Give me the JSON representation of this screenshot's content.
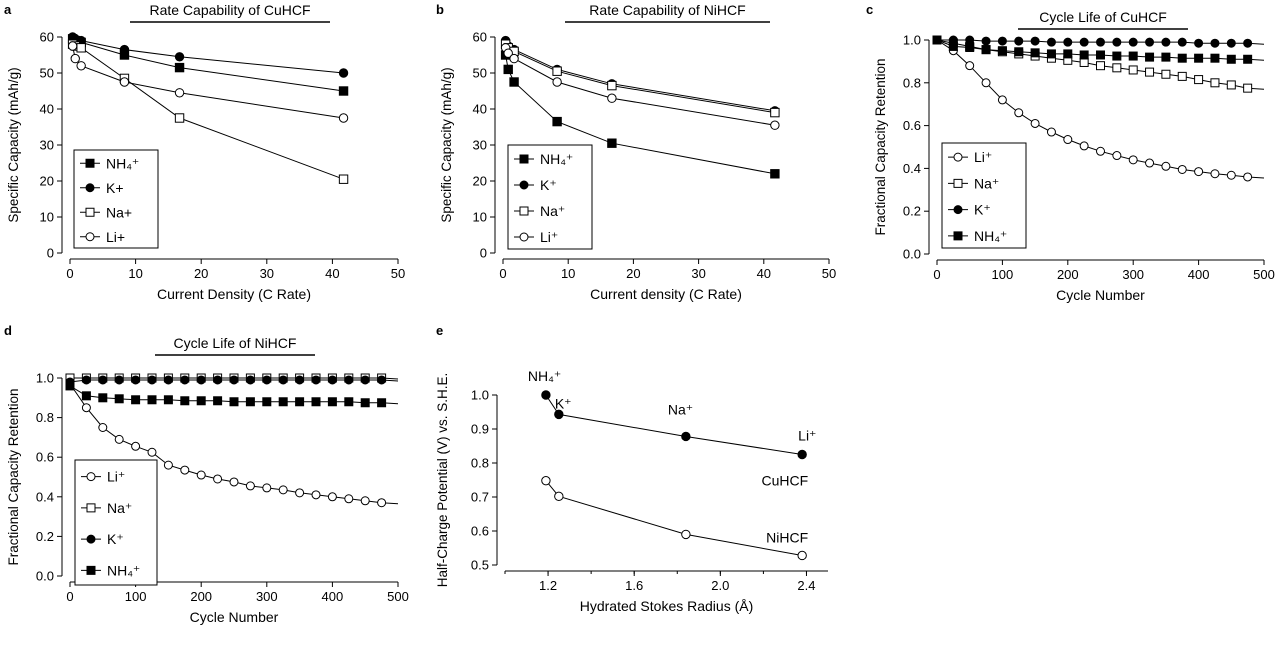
{
  "figure_title": "",
  "chart_data": [
    {
      "panel": "a",
      "type": "line",
      "title": "Rate Capability of CuHCF",
      "xlabel": "Current Density (C Rate)",
      "ylabel": "Specific Capacity (mAh/g)",
      "xlim": [
        0,
        50
      ],
      "ylim": [
        0,
        60
      ],
      "xticks": [
        "0",
        "10",
        "20",
        "30",
        "40",
        "50"
      ],
      "yticks": [
        "0",
        "10",
        "20",
        "30",
        "40",
        "50",
        "60"
      ],
      "legend": "bottom-left",
      "series": [
        {
          "name": "NH4+",
          "label": "NH₄⁺",
          "marker": "square",
          "filled": true,
          "x": [
            0.4,
            0.8,
            1.7,
            8.3,
            16.7,
            41.7
          ],
          "y": [
            59.5,
            59,
            58.5,
            55,
            51.5,
            45
          ]
        },
        {
          "name": "K+",
          "label": "K+",
          "marker": "circle",
          "filled": true,
          "x": [
            0.4,
            0.8,
            1.7,
            8.3,
            16.7,
            41.7
          ],
          "y": [
            60,
            59.5,
            59,
            56.5,
            54.5,
            50
          ]
        },
        {
          "name": "Na+",
          "label": "Na+",
          "marker": "square",
          "filled": false,
          "x": [
            0.4,
            0.8,
            1.7,
            8.3,
            16.7,
            41.7
          ],
          "y": [
            58,
            57.5,
            57,
            48.5,
            37.5,
            20.5
          ]
        },
        {
          "name": "Li+",
          "label": "Li+",
          "marker": "circle",
          "filled": false,
          "x": [
            0.4,
            0.8,
            1.7,
            8.3,
            16.7,
            41.7
          ],
          "y": [
            57.5,
            54,
            52,
            47.5,
            44.5,
            37.5
          ]
        }
      ]
    },
    {
      "panel": "b",
      "type": "line",
      "title": "Rate Capability of NiHCF",
      "xlabel": "Current density (C Rate)",
      "ylabel": "Specific Capacity (mAh/g)",
      "xlim": [
        0,
        50
      ],
      "ylim": [
        0,
        60
      ],
      "xticks": [
        "0",
        "10",
        "20",
        "30",
        "40",
        "50"
      ],
      "yticks": [
        "0",
        "10",
        "20",
        "30",
        "40",
        "50",
        "60"
      ],
      "legend": "bottom-left",
      "series": [
        {
          "name": "NH4+",
          "label": "NH₄⁺",
          "marker": "square",
          "filled": true,
          "x": [
            0.4,
            0.8,
            1.7,
            8.3,
            16.7,
            41.7
          ],
          "y": [
            55,
            51,
            47.5,
            36.5,
            30.5,
            22
          ]
        },
        {
          "name": "K+",
          "label": "K⁺",
          "marker": "circle",
          "filled": true,
          "x": [
            0.4,
            0.8,
            1.7,
            8.3,
            16.7,
            41.7
          ],
          "y": [
            59,
            57.5,
            56.5,
            51,
            47,
            39.5
          ]
        },
        {
          "name": "Na+",
          "label": "Na⁺",
          "marker": "square",
          "filled": false,
          "x": [
            0.4,
            0.8,
            1.7,
            8.3,
            16.7,
            41.7
          ],
          "y": [
            58,
            57,
            56,
            50.5,
            46.5,
            39
          ]
        },
        {
          "name": "Li+",
          "label": "Li⁺",
          "marker": "circle",
          "filled": false,
          "x": [
            0.4,
            0.8,
            1.7,
            8.3,
            16.7,
            41.7
          ],
          "y": [
            57,
            55.5,
            54,
            47.5,
            43,
            35.5
          ]
        }
      ]
    },
    {
      "panel": "c",
      "type": "line",
      "title": "Cycle Life of CuHCF",
      "xlabel": "Cycle Number",
      "ylabel": "Fractional Capacity Retention",
      "xlim": [
        0,
        500
      ],
      "ylim": [
        0,
        1.0
      ],
      "xticks": [
        "0",
        "100",
        "200",
        "300",
        "400",
        "500"
      ],
      "yticks": [
        "0.0",
        "0.2",
        "0.4",
        "0.6",
        "0.8",
        "1.0"
      ],
      "legend": "bottom-left",
      "series": [
        {
          "name": "Li+",
          "label": "Li⁺",
          "marker": "circle",
          "filled": false,
          "x": [
            0,
            25,
            50,
            75,
            100,
            125,
            150,
            175,
            200,
            225,
            250,
            275,
            300,
            325,
            350,
            375,
            400,
            425,
            450,
            475
          ],
          "y": [
            1.0,
            0.95,
            0.88,
            0.8,
            0.72,
            0.66,
            0.61,
            0.57,
            0.535,
            0.505,
            0.48,
            0.46,
            0.44,
            0.425,
            0.41,
            0.395,
            0.385,
            0.375,
            0.368,
            0.36
          ]
        },
        {
          "name": "Na+",
          "label": "Na⁺",
          "marker": "square",
          "filled": false,
          "x": [
            0,
            25,
            50,
            75,
            100,
            125,
            150,
            175,
            200,
            225,
            250,
            275,
            300,
            325,
            350,
            375,
            400,
            425,
            450,
            475
          ],
          "y": [
            1.0,
            0.985,
            0.97,
            0.955,
            0.945,
            0.935,
            0.925,
            0.915,
            0.905,
            0.895,
            0.88,
            0.87,
            0.86,
            0.85,
            0.84,
            0.83,
            0.815,
            0.8,
            0.79,
            0.775
          ]
        },
        {
          "name": "K+",
          "label": "K⁺",
          "marker": "circle",
          "filled": true,
          "x": [
            0,
            25,
            50,
            75,
            100,
            125,
            150,
            175,
            200,
            225,
            250,
            275,
            300,
            325,
            350,
            375,
            400,
            425,
            450,
            475
          ],
          "y": [
            1.0,
            1.0,
            1.0,
            0.995,
            0.995,
            0.995,
            0.995,
            0.99,
            0.99,
            0.99,
            0.99,
            0.99,
            0.99,
            0.99,
            0.99,
            0.99,
            0.985,
            0.985,
            0.985,
            0.985
          ]
        },
        {
          "name": "NH4+",
          "label": "NH₄⁺",
          "marker": "square",
          "filled": true,
          "x": [
            0,
            25,
            50,
            75,
            100,
            125,
            150,
            175,
            200,
            225,
            250,
            275,
            300,
            325,
            350,
            375,
            400,
            425,
            450,
            475
          ],
          "y": [
            1.0,
            0.97,
            0.965,
            0.955,
            0.95,
            0.945,
            0.94,
            0.935,
            0.935,
            0.93,
            0.93,
            0.925,
            0.925,
            0.92,
            0.92,
            0.915,
            0.915,
            0.915,
            0.91,
            0.91
          ]
        }
      ]
    },
    {
      "panel": "d",
      "type": "line",
      "title": "Cycle Life of NiHCF",
      "xlabel": "Cycle Number",
      "ylabel": "Fractional Capacity Retention",
      "xlim": [
        0,
        500
      ],
      "ylim": [
        0,
        1.0
      ],
      "xticks": [
        "0",
        "100",
        "200",
        "300",
        "400",
        "500"
      ],
      "yticks": [
        "0.0",
        "0.2",
        "0.4",
        "0.6",
        "0.8",
        "1.0"
      ],
      "legend": "bottom-left",
      "series": [
        {
          "name": "Li+",
          "label": "Li⁺",
          "marker": "circle",
          "filled": false,
          "x": [
            0,
            25,
            50,
            75,
            100,
            125,
            150,
            175,
            200,
            225,
            250,
            275,
            300,
            325,
            350,
            375,
            400,
            425,
            450,
            475
          ],
          "y": [
            0.97,
            0.85,
            0.75,
            0.69,
            0.655,
            0.625,
            0.56,
            0.535,
            0.51,
            0.49,
            0.475,
            0.455,
            0.445,
            0.435,
            0.42,
            0.41,
            0.4,
            0.39,
            0.38,
            0.37
          ]
        },
        {
          "name": "Na+",
          "label": "Na⁺",
          "marker": "square",
          "filled": false,
          "x": [
            0,
            25,
            50,
            75,
            100,
            125,
            150,
            175,
            200,
            225,
            250,
            275,
            300,
            325,
            350,
            375,
            400,
            425,
            450,
            475
          ],
          "y": [
            1.0,
            1.0,
            1.0,
            1.0,
            1.0,
            1.0,
            1.0,
            1.0,
            1.0,
            1.0,
            1.0,
            1.0,
            1.0,
            1.0,
            1.0,
            1.0,
            1.0,
            1.0,
            1.0,
            1.0
          ]
        },
        {
          "name": "K+",
          "label": "K⁺",
          "marker": "circle",
          "filled": true,
          "x": [
            0,
            25,
            50,
            75,
            100,
            125,
            150,
            175,
            200,
            225,
            250,
            275,
            300,
            325,
            350,
            375,
            400,
            425,
            450,
            475
          ],
          "y": [
            0.98,
            0.99,
            0.99,
            0.99,
            0.99,
            0.99,
            0.99,
            0.99,
            0.99,
            0.99,
            0.99,
            0.99,
            0.99,
            0.99,
            0.99,
            0.99,
            0.99,
            0.99,
            0.99,
            0.99
          ]
        },
        {
          "name": "NH4+",
          "label": "NH₄⁺",
          "marker": "square",
          "filled": true,
          "x": [
            0,
            25,
            50,
            75,
            100,
            125,
            150,
            175,
            200,
            225,
            250,
            275,
            300,
            325,
            350,
            375,
            400,
            425,
            450,
            475
          ],
          "y": [
            0.96,
            0.91,
            0.9,
            0.895,
            0.89,
            0.89,
            0.89,
            0.885,
            0.885,
            0.885,
            0.88,
            0.88,
            0.88,
            0.88,
            0.88,
            0.88,
            0.88,
            0.88,
            0.875,
            0.875
          ]
        }
      ]
    },
    {
      "panel": "e",
      "type": "scatter",
      "title": "",
      "xlabel": "Hydrated Stokes Radius (Å)",
      "ylabel": "Half-Charge Potential (V) vs. S.H.E.",
      "xlim": [
        1.0,
        2.5
      ],
      "ylim": [
        0.5,
        1.0
      ],
      "xticks": [
        "1.2",
        "1.6",
        "2.0",
        "2.4"
      ],
      "yticks": [
        "0.5",
        "0.6",
        "0.7",
        "0.8",
        "0.9",
        "1.0"
      ],
      "series": [
        {
          "name": "CuHCF",
          "label": "CuHCF",
          "marker": "circle",
          "filled": true,
          "x": [
            1.19,
            1.25,
            1.84,
            2.38
          ],
          "y": [
            1.0,
            0.943,
            0.878,
            0.825
          ]
        },
        {
          "name": "NiHCF",
          "label": "NiHCF",
          "marker": "circle",
          "filled": false,
          "x": [
            1.19,
            1.25,
            1.84,
            2.38
          ],
          "y": [
            0.748,
            0.702,
            0.59,
            0.528
          ]
        }
      ],
      "point_labels": [
        {
          "text": "NH₄⁺",
          "x": 1.19,
          "y": 1.0
        },
        {
          "text": "K⁺",
          "x": 1.25,
          "y": 0.943
        },
        {
          "text": "Na⁺",
          "x": 1.84,
          "y": 0.878
        },
        {
          "text": "Li⁺",
          "x": 2.38,
          "y": 0.825
        }
      ]
    }
  ]
}
